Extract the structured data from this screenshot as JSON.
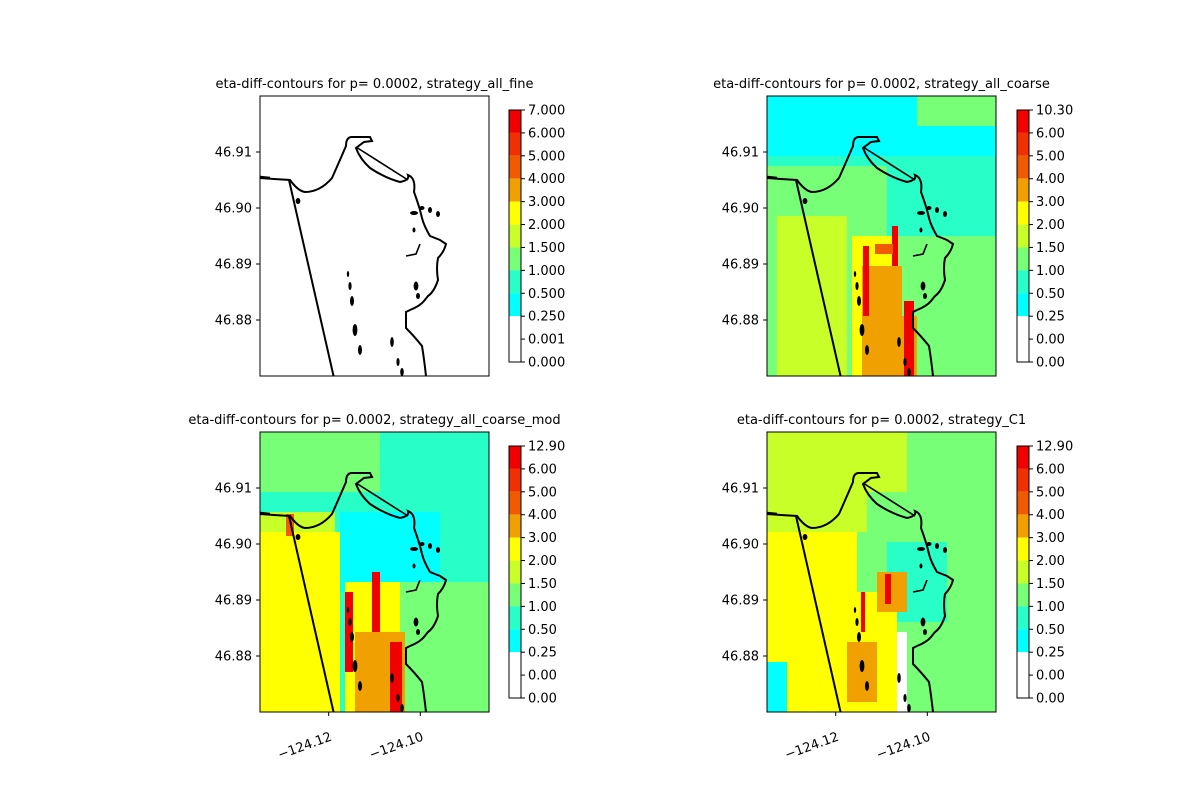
{
  "figure": {
    "panels": [
      {
        "title": "eta-diff-contours for p= 0.0002, strategy_all_fine",
        "fill": "blank",
        "colorbar_ticks": [
          "7.000",
          "6.000",
          "5.000",
          "4.000",
          "3.000",
          "2.000",
          "1.500",
          "1.000",
          "0.500",
          "0.250",
          "0.001",
          "0.000"
        ],
        "yticks": [
          "46.91",
          "46.90",
          "46.89",
          "46.88"
        ],
        "xticks": []
      },
      {
        "title": "eta-diff-contours for p= 0.0002, strategy_all_coarse",
        "fill": "coarse",
        "colorbar_ticks": [
          "10.30",
          "6.00",
          "5.00",
          "4.00",
          "3.00",
          "2.00",
          "1.50",
          "1.00",
          "0.50",
          "0.25",
          "0.00",
          "0.00"
        ],
        "yticks": [
          "46.91",
          "46.90",
          "46.89",
          "46.88"
        ],
        "xticks": []
      },
      {
        "title": "eta-diff-contours for p= 0.0002, strategy_all_coarse_mod",
        "fill": "coarse_mod",
        "colorbar_ticks": [
          "12.90",
          "6.00",
          "5.00",
          "4.00",
          "3.00",
          "2.00",
          "1.50",
          "1.00",
          "0.50",
          "0.25",
          "0.00",
          "0.00"
        ],
        "yticks": [
          "46.91",
          "46.90",
          "46.89",
          "46.88"
        ],
        "xticks": [
          "−124.12",
          "−124.10"
        ]
      },
      {
        "title": "eta-diff-contours for p= 0.0002, strategy_C1",
        "fill": "c1",
        "colorbar_ticks": [
          "12.90",
          "6.00",
          "5.00",
          "4.00",
          "3.00",
          "2.00",
          "1.50",
          "1.00",
          "0.50",
          "0.25",
          "0.00",
          "0.00"
        ],
        "yticks": [
          "46.91",
          "46.90",
          "46.89",
          "46.88"
        ],
        "xticks": [
          "−124.12",
          "−124.10"
        ]
      }
    ]
  },
  "colors": {
    "colorbar_bands_top_to_bottom": [
      "#f00000",
      "#f03000",
      "#f05a00",
      "#f0a000",
      "#ffff00",
      "#c8ff28",
      "#78ff78",
      "#28ffc8",
      "#00ffff",
      "#ffffff"
    ],
    "coastline": "#000000"
  },
  "chart_data": [
    {
      "type": "heatmap",
      "title": "eta-diff-contours for p= 0.0002, strategy_all_fine",
      "contour_levels": [
        0.0,
        0.001,
        0.25,
        0.5,
        1.0,
        1.5,
        2.0,
        3.0,
        4.0,
        5.0,
        6.0,
        7.0
      ],
      "ylim": [
        46.87,
        46.92
      ],
      "yticks": [
        46.88,
        46.89,
        46.9,
        46.91
      ],
      "xlim": [
        -124.135,
        -124.085
      ],
      "note_values": "difference field blank (white) everywhere"
    },
    {
      "type": "heatmap",
      "title": "eta-diff-contours for p= 0.0002, strategy_all_coarse",
      "contour_levels": [
        0.0,
        0.0,
        0.25,
        0.5,
        1.0,
        1.5,
        2.0,
        3.0,
        4.0,
        5.0,
        6.0,
        10.3
      ],
      "ylim": [
        46.87,
        46.92
      ],
      "yticks": [
        46.88,
        46.89,
        46.9,
        46.91
      ],
      "xlim": [
        -124.135,
        -124.085
      ]
    },
    {
      "type": "heatmap",
      "title": "eta-diff-contours for p= 0.0002, strategy_all_coarse_mod",
      "contour_levels": [
        0.0,
        0.0,
        0.25,
        0.5,
        1.0,
        1.5,
        2.0,
        3.0,
        4.0,
        5.0,
        6.0,
        12.9
      ],
      "ylim": [
        46.87,
        46.92
      ],
      "yticks": [
        46.88,
        46.89,
        46.9,
        46.91
      ],
      "xlim": [
        -124.135,
        -124.085
      ],
      "xticks": [
        -124.12,
        -124.1
      ]
    },
    {
      "type": "heatmap",
      "title": "eta-diff-contours for p= 0.0002, strategy_C1",
      "contour_levels": [
        0.0,
        0.0,
        0.25,
        0.5,
        1.0,
        1.5,
        2.0,
        3.0,
        4.0,
        5.0,
        6.0,
        12.9
      ],
      "ylim": [
        46.87,
        46.92
      ],
      "yticks": [
        46.88,
        46.89,
        46.9,
        46.91
      ],
      "xlim": [
        -124.135,
        -124.085
      ],
      "xticks": [
        -124.12,
        -124.1
      ]
    }
  ]
}
